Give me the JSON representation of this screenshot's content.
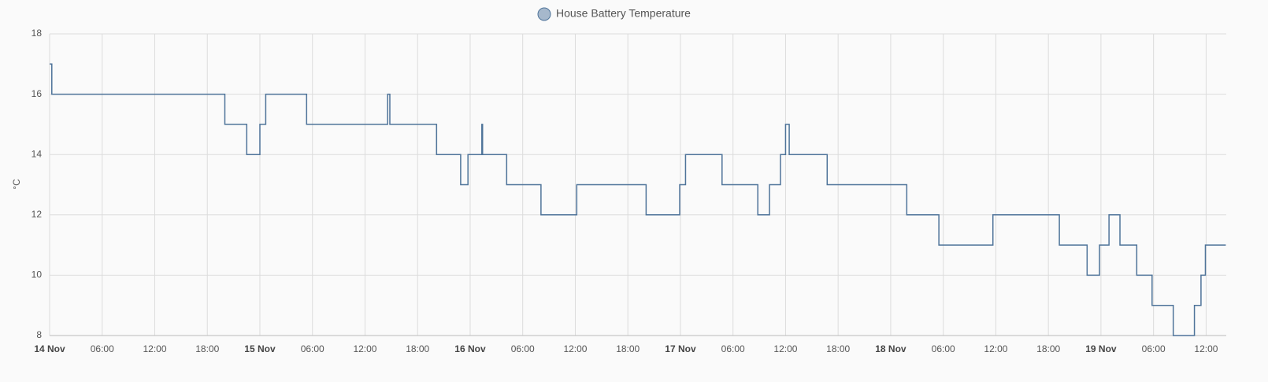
{
  "chart_data": {
    "type": "line",
    "y_label": "°C",
    "step": true,
    "xlim": [
      "14 Nov 00:00",
      "19 Nov 14:18"
    ],
    "xticks": [
      {
        "value": "14 Nov 00:00",
        "label": "14 Nov"
      },
      {
        "value": "14 Nov 06:00",
        "label": "06:00"
      },
      {
        "value": "14 Nov 12:00",
        "label": "12:00"
      },
      {
        "value": "14 Nov 18:00",
        "label": "18:00"
      },
      {
        "value": "15 Nov 00:00",
        "label": "15 Nov"
      },
      {
        "value": "15 Nov 06:00",
        "label": "06:00"
      },
      {
        "value": "15 Nov 12:00",
        "label": "12:00"
      },
      {
        "value": "15 Nov 18:00",
        "label": "18:00"
      },
      {
        "value": "16 Nov 00:00",
        "label": "16 Nov"
      },
      {
        "value": "16 Nov 06:00",
        "label": "06:00"
      },
      {
        "value": "16 Nov 12:00",
        "label": "12:00"
      },
      {
        "value": "16 Nov 18:00",
        "label": "18:00"
      },
      {
        "value": "17 Nov 00:00",
        "label": "17 Nov"
      },
      {
        "value": "17 Nov 06:00",
        "label": "06:00"
      },
      {
        "value": "17 Nov 12:00",
        "label": "12:00"
      },
      {
        "value": "17 Nov 18:00",
        "label": "18:00"
      },
      {
        "value": "18 Nov 00:00",
        "label": "18 Nov"
      },
      {
        "value": "18 Nov 06:00",
        "label": "06:00"
      },
      {
        "value": "18 Nov 12:00",
        "label": "12:00"
      },
      {
        "value": "18 Nov 18:00",
        "label": "18:00"
      },
      {
        "value": "19 Nov 00:00",
        "label": "19 Nov"
      },
      {
        "value": "19 Nov 06:00",
        "label": "06:00"
      },
      {
        "value": "19 Nov 12:00",
        "label": "12:00"
      }
    ],
    "ylim": [
      8,
      18
    ],
    "yticks": [
      8,
      10,
      12,
      14,
      16,
      18
    ],
    "grid": true,
    "x": [
      "14 Nov 00:00",
      "14 Nov 00:15",
      "14 Nov 20:00",
      "14 Nov 22:30",
      "15 Nov 00:00",
      "15 Nov 00:40",
      "15 Nov 05:20",
      "15 Nov 14:35",
      "15 Nov 14:50",
      "15 Nov 20:10",
      "15 Nov 22:55",
      "15 Nov 23:45",
      "16 Nov 01:20",
      "16 Nov 01:25",
      "16 Nov 04:10",
      "16 Nov 08:05",
      "16 Nov 12:10",
      "16 Nov 20:05",
      "16 Nov 23:55",
      "17 Nov 00:35",
      "17 Nov 04:45",
      "17 Nov 08:50",
      "17 Nov 10:10",
      "17 Nov 11:25",
      "17 Nov 12:00",
      "17 Nov 12:25",
      "17 Nov 16:45",
      "18 Nov 01:50",
      "18 Nov 05:30",
      "18 Nov 11:40",
      "18 Nov 19:15",
      "18 Nov 22:25",
      "18 Nov 23:50",
      "19 Nov 00:55",
      "19 Nov 02:10",
      "19 Nov 04:05",
      "19 Nov 05:50",
      "19 Nov 08:15",
      "19 Nov 10:40",
      "19 Nov 11:25",
      "19 Nov 11:55",
      "19 Nov 14:15"
    ],
    "series": [
      {
        "name": "House Battery Temperature",
        "color": "#4e7399",
        "values": [
          17,
          16,
          15,
          14,
          15,
          16,
          15,
          16,
          15,
          14,
          13,
          14,
          15,
          14,
          13,
          12,
          13,
          12,
          13,
          14,
          13,
          12,
          13,
          14,
          15,
          14,
          13,
          12,
          11,
          12,
          11,
          10,
          11,
          12,
          11,
          10,
          9,
          8,
          9,
          10,
          11,
          11
        ]
      }
    ]
  }
}
